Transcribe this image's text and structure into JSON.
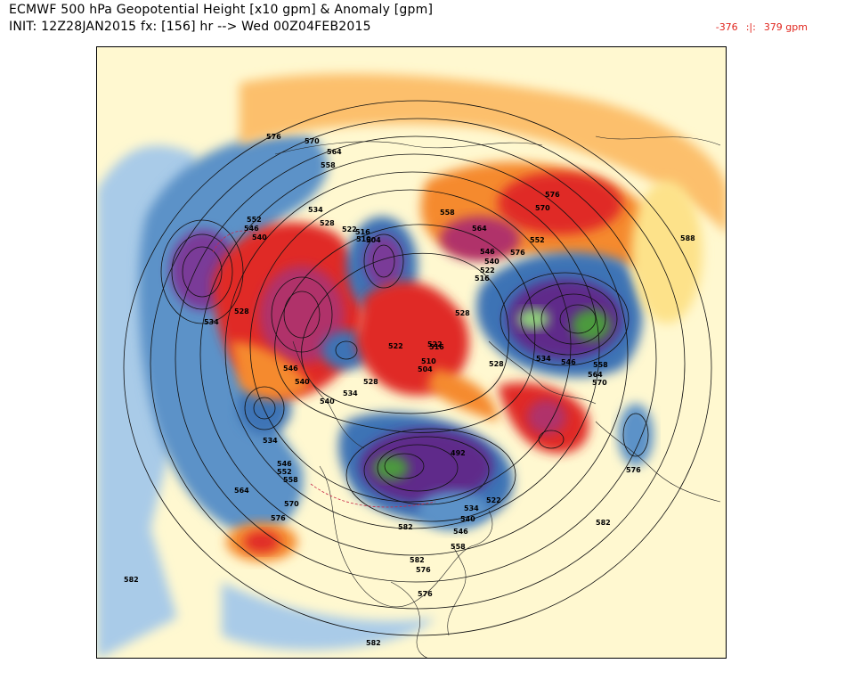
{
  "header": {
    "line1": "ECMWF 500 hPa Geopotential Height [x10 gpm] & Anomaly [gpm]",
    "line2": "INIT: 12Z28JAN2015 fx: [156] hr --> Wed 00Z04FEB2015"
  },
  "anomaly_range": {
    "min": "-376",
    "sep": ":|:",
    "max": "379 gpm"
  },
  "map": {
    "projection": "north-polar-stereographic",
    "contour_labels": [
      {
        "text": "576"
      },
      {
        "text": "570"
      },
      {
        "text": "564"
      },
      {
        "text": "558"
      },
      {
        "text": "534"
      },
      {
        "text": "528"
      },
      {
        "text": "522"
      },
      {
        "text": "516"
      },
      {
        "text": "510"
      },
      {
        "text": "504"
      },
      {
        "text": "552"
      },
      {
        "text": "546"
      },
      {
        "text": "540"
      },
      {
        "text": "558"
      },
      {
        "text": "564"
      },
      {
        "text": "576"
      },
      {
        "text": "570"
      },
      {
        "text": "552"
      },
      {
        "text": "546"
      },
      {
        "text": "540"
      },
      {
        "text": "522"
      },
      {
        "text": "516"
      },
      {
        "text": "588"
      },
      {
        "text": "528"
      },
      {
        "text": "534"
      },
      {
        "text": "528"
      },
      {
        "text": "522"
      },
      {
        "text": "516"
      },
      {
        "text": "510"
      },
      {
        "text": "504"
      },
      {
        "text": "522"
      },
      {
        "text": "528"
      },
      {
        "text": "534"
      },
      {
        "text": "546"
      },
      {
        "text": "558"
      },
      {
        "text": "564"
      },
      {
        "text": "570"
      },
      {
        "text": "540"
      },
      {
        "text": "534"
      },
      {
        "text": "528"
      },
      {
        "text": "546"
      },
      {
        "text": "534"
      },
      {
        "text": "540"
      },
      {
        "text": "546"
      },
      {
        "text": "552"
      },
      {
        "text": "558"
      },
      {
        "text": "564"
      },
      {
        "text": "570"
      },
      {
        "text": "576"
      },
      {
        "text": "582"
      },
      {
        "text": "492"
      },
      {
        "text": "522"
      },
      {
        "text": "534"
      },
      {
        "text": "540"
      },
      {
        "text": "546"
      },
      {
        "text": "558"
      },
      {
        "text": "576"
      },
      {
        "text": "582"
      },
      {
        "text": "576"
      },
      {
        "text": "582"
      },
      {
        "text": "576"
      },
      {
        "text": "582"
      },
      {
        "text": "576"
      },
      {
        "text": "582"
      }
    ]
  },
  "colors": {
    "strong_positive": "#b0306a",
    "positive": "#e02a28",
    "warm": "#f58a2e",
    "mild_warm": "#fde28a",
    "neutral": "#fff8d0",
    "mild_cold": "#a9cbe8",
    "cold": "#3d73b5",
    "strong_negative": "#5e2c8a",
    "extreme_negative": "#4c9a3c",
    "range_text": "#e0241c"
  }
}
